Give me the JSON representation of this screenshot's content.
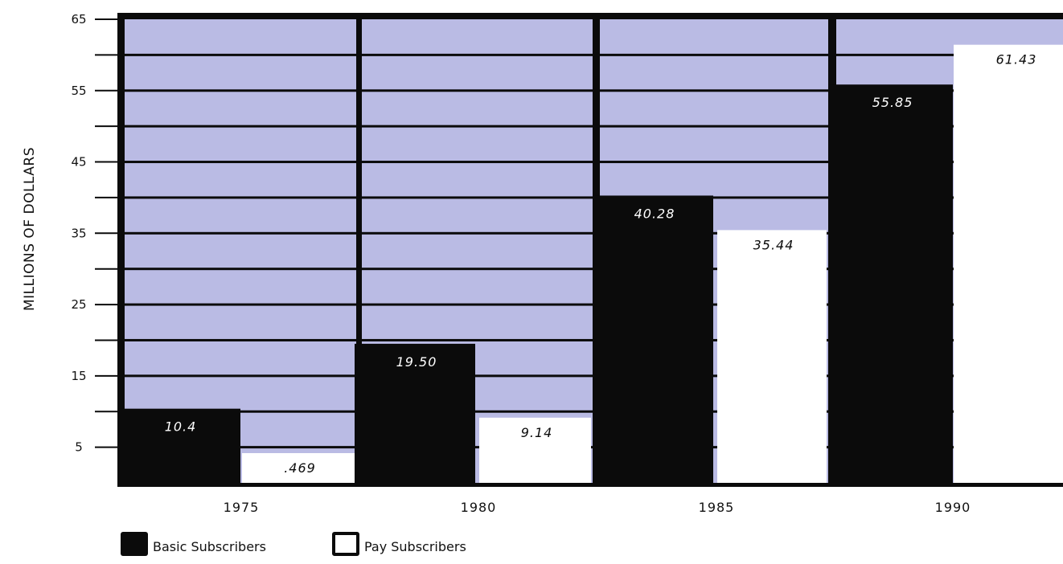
{
  "chart_data": {
    "type": "bar",
    "title": "",
    "xlabel": "",
    "ylabel": "MILLIONS OF DOLLARS",
    "ylim": [
      0,
      65
    ],
    "yticks": [
      5,
      15,
      25,
      35,
      45,
      55,
      65
    ],
    "categories": [
      "1975",
      "1980",
      "1985",
      "1990"
    ],
    "series": [
      {
        "name": "Basic Subscribers",
        "values": [
          10.4,
          19.5,
          40.28,
          55.85
        ],
        "labels": [
          "10.4",
          "19.50",
          "40.28",
          "55.85"
        ],
        "color": "#0b0b0b"
      },
      {
        "name": "Pay Subscribers",
        "values": [
          0.469,
          9.14,
          35.44,
          61.43
        ],
        "labels": [
          ".469",
          "9.14",
          "35.44",
          "61.43"
        ],
        "color": "#ffffff"
      }
    ],
    "background_color": "#babbe4",
    "grid": true,
    "legend": "bottom-left"
  }
}
